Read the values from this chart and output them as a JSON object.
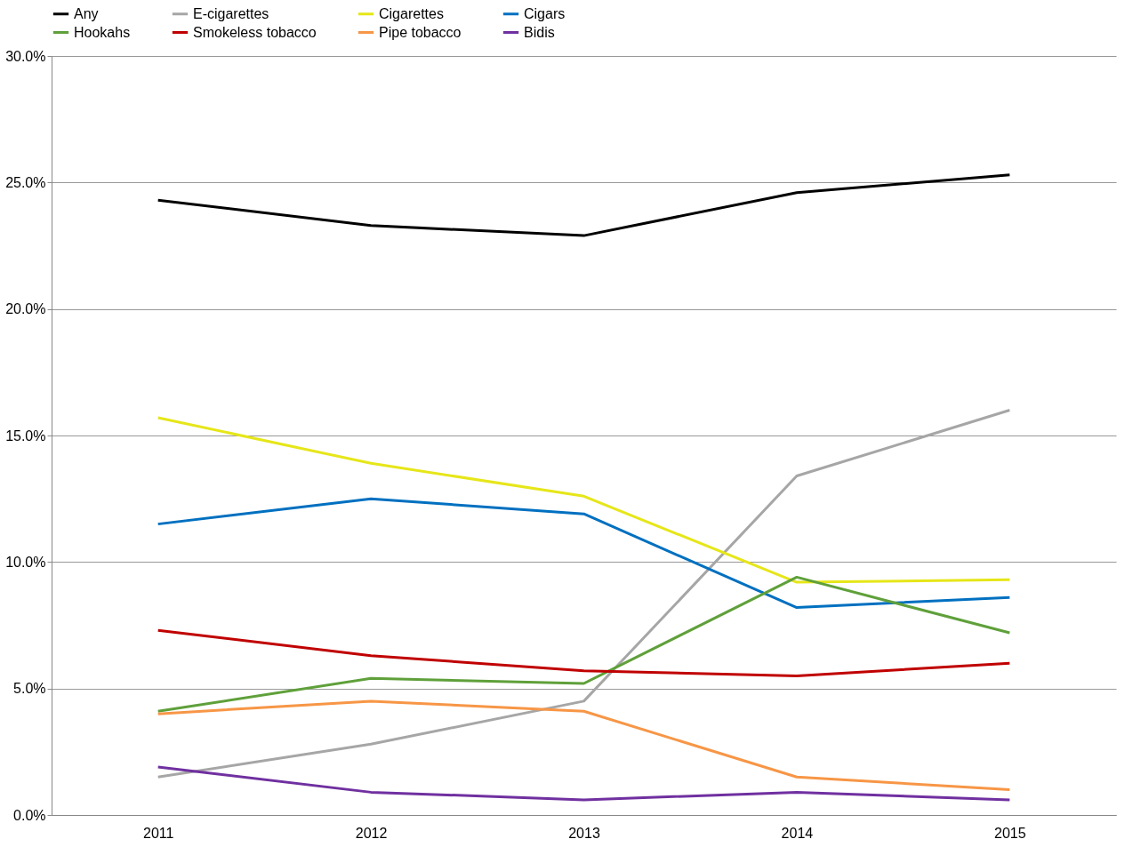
{
  "chart_data": {
    "type": "line",
    "categories": [
      "2011",
      "2012",
      "2013",
      "2014",
      "2015"
    ],
    "series": [
      {
        "name": "Any",
        "color": "#000000",
        "values": [
          24.3,
          23.3,
          22.9,
          24.6,
          25.3
        ]
      },
      {
        "name": "E-cigarettes",
        "color": "#a6a6a6",
        "values": [
          1.5,
          2.8,
          4.5,
          13.4,
          16.0
        ]
      },
      {
        "name": "Cigarettes",
        "color": "#e6e619",
        "values": [
          15.7,
          13.9,
          12.6,
          9.2,
          9.3
        ]
      },
      {
        "name": "Cigars",
        "color": "#0070c0",
        "values": [
          11.5,
          12.5,
          11.9,
          8.2,
          8.6
        ]
      },
      {
        "name": "Hookahs",
        "color": "#5fa03a",
        "values": [
          4.1,
          5.4,
          5.2,
          9.4,
          7.2
        ]
      },
      {
        "name": "Smokeless tobacco",
        "color": "#c00000",
        "values": [
          7.3,
          6.3,
          5.7,
          5.5,
          6.0
        ]
      },
      {
        "name": "Pipe tobacco",
        "color": "#f79646",
        "values": [
          4.0,
          4.5,
          4.1,
          1.5,
          1.0
        ]
      },
      {
        "name": "Bidis",
        "color": "#7030a0",
        "values": [
          1.9,
          0.9,
          0.6,
          0.9,
          0.6
        ]
      }
    ],
    "ylim": [
      0,
      30
    ],
    "yticks": [
      {
        "value": 0,
        "label": "0.0%"
      },
      {
        "value": 5,
        "label": "5.0%"
      },
      {
        "value": 10,
        "label": "10.0%"
      },
      {
        "value": 15,
        "label": "15.0%"
      },
      {
        "value": 20,
        "label": "20.0%"
      },
      {
        "value": 25,
        "label": "25.0%"
      },
      {
        "value": 30,
        "label": "30.0%"
      }
    ],
    "grid": "y",
    "legend": "top",
    "marker": "none",
    "line_style": "solid"
  }
}
